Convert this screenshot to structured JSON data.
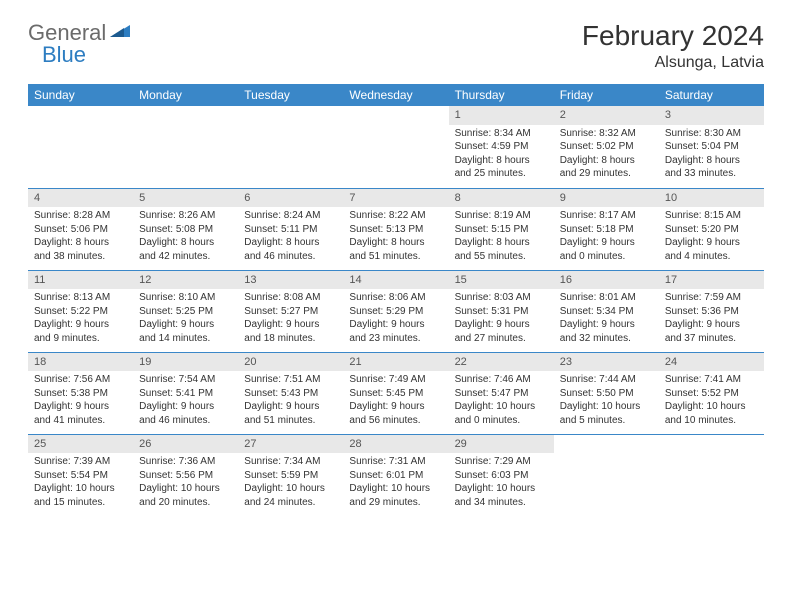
{
  "logo": {
    "text1": "General",
    "text2": "Blue"
  },
  "title": "February 2024",
  "location": "Alsunga, Latvia",
  "colors": {
    "header_bg": "#3a87c8",
    "header_text": "#ffffff",
    "daynum_bg": "#e8e8e8",
    "daynum_text": "#555555",
    "row_border": "#3a87c8",
    "body_text": "#333333",
    "logo_gray": "#6b6b6b",
    "logo_blue": "#2d7dc1"
  },
  "daynames": [
    "Sunday",
    "Monday",
    "Tuesday",
    "Wednesday",
    "Thursday",
    "Friday",
    "Saturday"
  ],
  "weeks": [
    [
      null,
      null,
      null,
      null,
      {
        "n": "1",
        "sr": "Sunrise: 8:34 AM",
        "ss": "Sunset: 4:59 PM",
        "d1": "Daylight: 8 hours",
        "d2": "and 25 minutes."
      },
      {
        "n": "2",
        "sr": "Sunrise: 8:32 AM",
        "ss": "Sunset: 5:02 PM",
        "d1": "Daylight: 8 hours",
        "d2": "and 29 minutes."
      },
      {
        "n": "3",
        "sr": "Sunrise: 8:30 AM",
        "ss": "Sunset: 5:04 PM",
        "d1": "Daylight: 8 hours",
        "d2": "and 33 minutes."
      }
    ],
    [
      {
        "n": "4",
        "sr": "Sunrise: 8:28 AM",
        "ss": "Sunset: 5:06 PM",
        "d1": "Daylight: 8 hours",
        "d2": "and 38 minutes."
      },
      {
        "n": "5",
        "sr": "Sunrise: 8:26 AM",
        "ss": "Sunset: 5:08 PM",
        "d1": "Daylight: 8 hours",
        "d2": "and 42 minutes."
      },
      {
        "n": "6",
        "sr": "Sunrise: 8:24 AM",
        "ss": "Sunset: 5:11 PM",
        "d1": "Daylight: 8 hours",
        "d2": "and 46 minutes."
      },
      {
        "n": "7",
        "sr": "Sunrise: 8:22 AM",
        "ss": "Sunset: 5:13 PM",
        "d1": "Daylight: 8 hours",
        "d2": "and 51 minutes."
      },
      {
        "n": "8",
        "sr": "Sunrise: 8:19 AM",
        "ss": "Sunset: 5:15 PM",
        "d1": "Daylight: 8 hours",
        "d2": "and 55 minutes."
      },
      {
        "n": "9",
        "sr": "Sunrise: 8:17 AM",
        "ss": "Sunset: 5:18 PM",
        "d1": "Daylight: 9 hours",
        "d2": "and 0 minutes."
      },
      {
        "n": "10",
        "sr": "Sunrise: 8:15 AM",
        "ss": "Sunset: 5:20 PM",
        "d1": "Daylight: 9 hours",
        "d2": "and 4 minutes."
      }
    ],
    [
      {
        "n": "11",
        "sr": "Sunrise: 8:13 AM",
        "ss": "Sunset: 5:22 PM",
        "d1": "Daylight: 9 hours",
        "d2": "and 9 minutes."
      },
      {
        "n": "12",
        "sr": "Sunrise: 8:10 AM",
        "ss": "Sunset: 5:25 PM",
        "d1": "Daylight: 9 hours",
        "d2": "and 14 minutes."
      },
      {
        "n": "13",
        "sr": "Sunrise: 8:08 AM",
        "ss": "Sunset: 5:27 PM",
        "d1": "Daylight: 9 hours",
        "d2": "and 18 minutes."
      },
      {
        "n": "14",
        "sr": "Sunrise: 8:06 AM",
        "ss": "Sunset: 5:29 PM",
        "d1": "Daylight: 9 hours",
        "d2": "and 23 minutes."
      },
      {
        "n": "15",
        "sr": "Sunrise: 8:03 AM",
        "ss": "Sunset: 5:31 PM",
        "d1": "Daylight: 9 hours",
        "d2": "and 27 minutes."
      },
      {
        "n": "16",
        "sr": "Sunrise: 8:01 AM",
        "ss": "Sunset: 5:34 PM",
        "d1": "Daylight: 9 hours",
        "d2": "and 32 minutes."
      },
      {
        "n": "17",
        "sr": "Sunrise: 7:59 AM",
        "ss": "Sunset: 5:36 PM",
        "d1": "Daylight: 9 hours",
        "d2": "and 37 minutes."
      }
    ],
    [
      {
        "n": "18",
        "sr": "Sunrise: 7:56 AM",
        "ss": "Sunset: 5:38 PM",
        "d1": "Daylight: 9 hours",
        "d2": "and 41 minutes."
      },
      {
        "n": "19",
        "sr": "Sunrise: 7:54 AM",
        "ss": "Sunset: 5:41 PM",
        "d1": "Daylight: 9 hours",
        "d2": "and 46 minutes."
      },
      {
        "n": "20",
        "sr": "Sunrise: 7:51 AM",
        "ss": "Sunset: 5:43 PM",
        "d1": "Daylight: 9 hours",
        "d2": "and 51 minutes."
      },
      {
        "n": "21",
        "sr": "Sunrise: 7:49 AM",
        "ss": "Sunset: 5:45 PM",
        "d1": "Daylight: 9 hours",
        "d2": "and 56 minutes."
      },
      {
        "n": "22",
        "sr": "Sunrise: 7:46 AM",
        "ss": "Sunset: 5:47 PM",
        "d1": "Daylight: 10 hours",
        "d2": "and 0 minutes."
      },
      {
        "n": "23",
        "sr": "Sunrise: 7:44 AM",
        "ss": "Sunset: 5:50 PM",
        "d1": "Daylight: 10 hours",
        "d2": "and 5 minutes."
      },
      {
        "n": "24",
        "sr": "Sunrise: 7:41 AM",
        "ss": "Sunset: 5:52 PM",
        "d1": "Daylight: 10 hours",
        "d2": "and 10 minutes."
      }
    ],
    [
      {
        "n": "25",
        "sr": "Sunrise: 7:39 AM",
        "ss": "Sunset: 5:54 PM",
        "d1": "Daylight: 10 hours",
        "d2": "and 15 minutes."
      },
      {
        "n": "26",
        "sr": "Sunrise: 7:36 AM",
        "ss": "Sunset: 5:56 PM",
        "d1": "Daylight: 10 hours",
        "d2": "and 20 minutes."
      },
      {
        "n": "27",
        "sr": "Sunrise: 7:34 AM",
        "ss": "Sunset: 5:59 PM",
        "d1": "Daylight: 10 hours",
        "d2": "and 24 minutes."
      },
      {
        "n": "28",
        "sr": "Sunrise: 7:31 AM",
        "ss": "Sunset: 6:01 PM",
        "d1": "Daylight: 10 hours",
        "d2": "and 29 minutes."
      },
      {
        "n": "29",
        "sr": "Sunrise: 7:29 AM",
        "ss": "Sunset: 6:03 PM",
        "d1": "Daylight: 10 hours",
        "d2": "and 34 minutes."
      },
      null,
      null
    ]
  ]
}
